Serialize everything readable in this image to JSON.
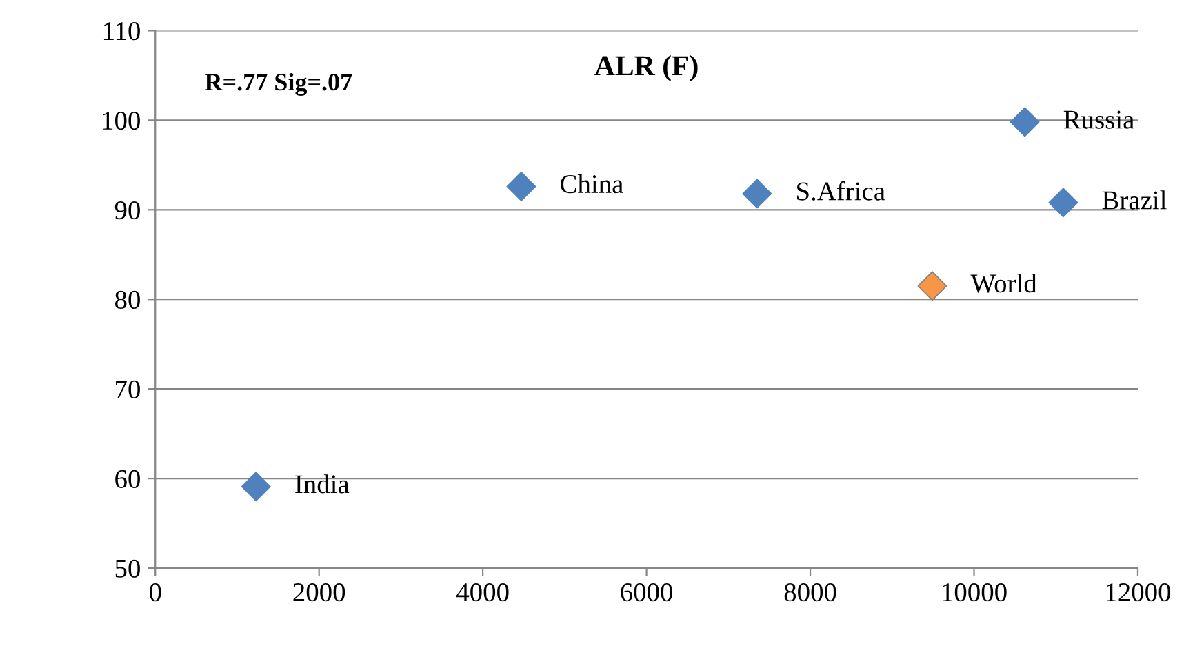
{
  "chart_data": {
    "type": "scatter",
    "title": "ALR (F)",
    "x": [
      1230,
      4470,
      7350,
      9490,
      10620,
      11090
    ],
    "values": [
      59.1,
      92.6,
      91.8,
      81.5,
      99.8,
      90.8
    ],
    "colors": [
      "#4f81bd",
      "#4f81bd",
      "#4f81bd",
      "#f79646",
      "#4f81bd",
      "#4f81bd"
    ],
    "marker": "diamond",
    "annotations": [
      "R=.77 Sig=.07",
      {
        "text": "India",
        "x": 1230,
        "y": 59.1
      },
      {
        "text": "China",
        "x": 4470,
        "y": 92.6
      },
      {
        "text": "S.Africa",
        "x": 7350,
        "y": 91.8
      },
      {
        "text": "World",
        "x": 9490,
        "y": 81.5
      },
      {
        "text": "Russia",
        "x": 10620,
        "y": 99.8
      },
      {
        "text": "Brazil",
        "x": 11090,
        "y": 90.8
      }
    ],
    "xlim": [
      0,
      12000
    ],
    "xticks": [
      0,
      2000,
      4000,
      6000,
      8000,
      10000,
      12000
    ],
    "ylim": [
      50,
      110
    ],
    "yticks": [
      50,
      60,
      70,
      80,
      90,
      100,
      110
    ],
    "grid": "y",
    "legend": false
  }
}
